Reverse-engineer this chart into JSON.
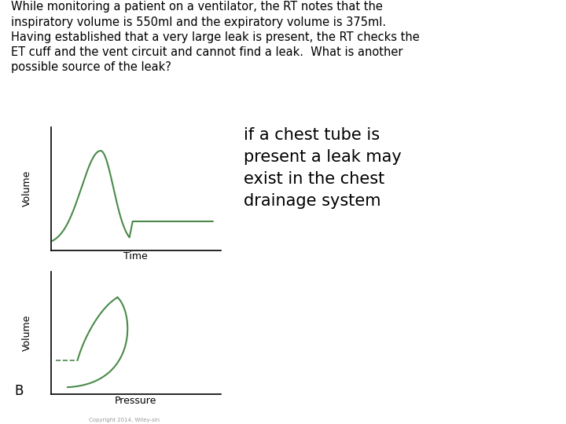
{
  "title_text": "While monitoring a patient on a ventilator, the RT notes that the\ninspiratory volume is 550ml and the expiratory volume is 375ml.\nHaving established that a very large leak is present, the RT checks the\nET cuff and the vent circuit and cannot find a leak.  What is another\npossible source of the leak?",
  "answer_text": "if a chest tube is\npresent a leak may\nexist in the chest\ndrainage system",
  "line_color": "#4a8a4a",
  "background_color": "#ffffff",
  "label_a_time": "Time",
  "label_a_volume": "Volume",
  "label_b_pressure": "Pressure",
  "label_b_volume": "Volume",
  "label_b": "B",
  "copyright_text": "Copyright 2014, Wiley-sin",
  "title_fontsize": 10.5,
  "answer_fontsize": 15
}
